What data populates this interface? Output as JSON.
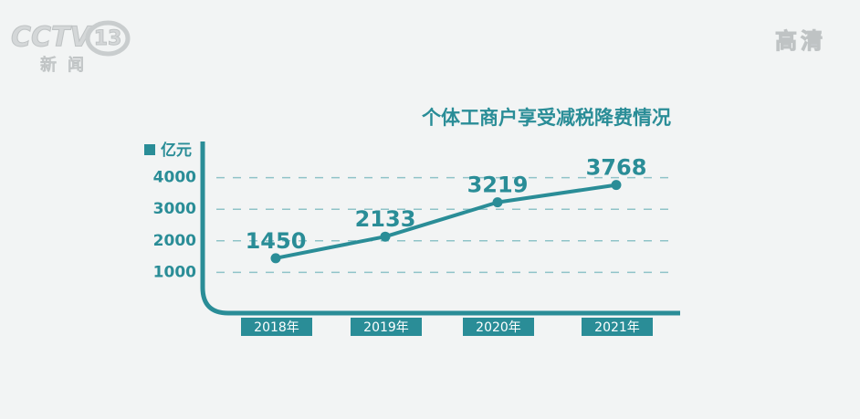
{
  "logo": {
    "name": "CCTV",
    "channel": "13",
    "section": "新闻"
  },
  "quality": "高清",
  "chart_data": {
    "type": "line",
    "title": "个体工商户享受减税降费情况",
    "y_label": "亿元",
    "categories": [
      "2018年",
      "2019年",
      "2020年",
      "2021年"
    ],
    "values": [
      1450,
      2133,
      3219,
      3768
    ],
    "color": "#2a8d97",
    "ylim": [
      0,
      5000
    ],
    "yticks": [
      1000,
      2000,
      3000,
      4000
    ],
    "grid": true
  }
}
